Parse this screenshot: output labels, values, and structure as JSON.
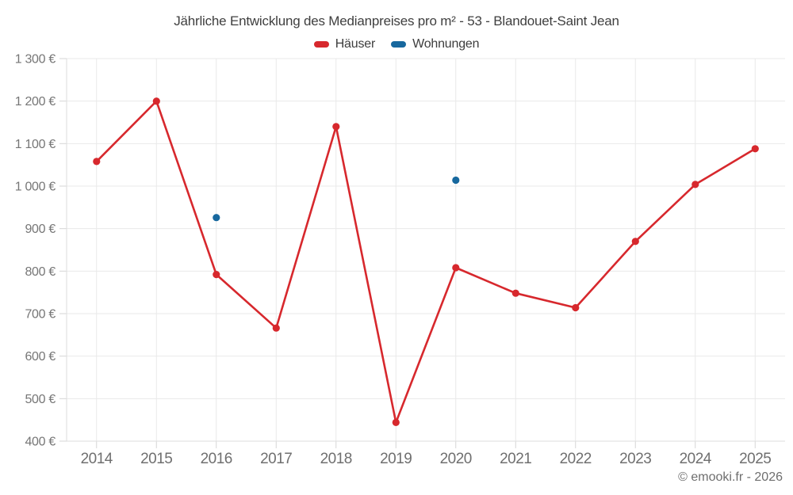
{
  "title": "Jährliche Entwicklung des Medianpreises pro m² - 53 - Blandouet-Saint Jean",
  "footer": "© emooki.fr - 2026",
  "colors": {
    "hauser": "#d7282d",
    "wohnungen": "#17689e",
    "gridline": "#e9e9e9",
    "axis": "#dedede",
    "tick": "#d6d6d6"
  },
  "chart_data": {
    "type": "line",
    "title": "Jährliche Entwicklung des Medianpreises pro m² - 53 - Blandouet-Saint Jean",
    "categories": [
      "2014",
      "2015",
      "2016",
      "2017",
      "2018",
      "2019",
      "2020",
      "2021",
      "2022",
      "2023",
      "2024",
      "2025"
    ],
    "series": [
      {
        "name": "Häuser",
        "type": "line",
        "draw_line": true,
        "color": "#d7282d",
        "values": [
          1058,
          1200,
          792,
          666,
          1140,
          444,
          808,
          748,
          714,
          870,
          1004,
          1088
        ]
      },
      {
        "name": "Wohnungen",
        "type": "scatter",
        "draw_line": false,
        "color": "#17689e",
        "values": [
          null,
          null,
          926,
          null,
          null,
          null,
          1014,
          null,
          null,
          null,
          null,
          null
        ]
      }
    ],
    "xlabel": "",
    "ylabel": "",
    "ylim": [
      400,
      1300
    ],
    "ytick_step": 100,
    "ytick_labels": [
      "400 €",
      "500 €",
      "600 €",
      "700 €",
      "800 €",
      "900 €",
      "1 000 €",
      "1 100 €",
      "1 200 €",
      "1 300 €"
    ],
    "grid": true,
    "legend_position": "top"
  }
}
